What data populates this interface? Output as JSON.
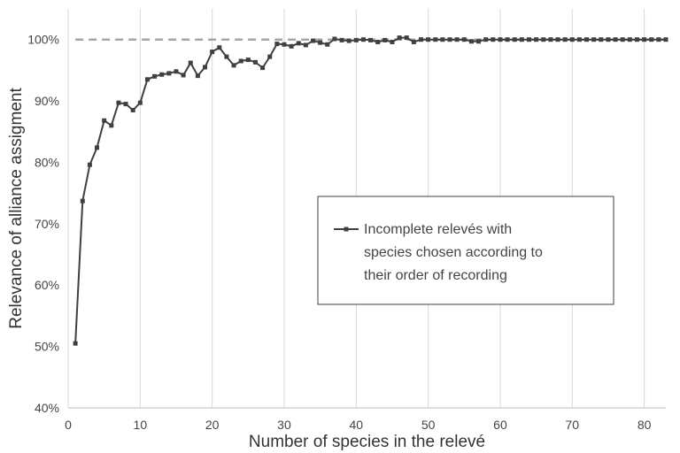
{
  "chart_data": {
    "type": "line",
    "title": "",
    "xlabel": "Number of species in the relevé",
    "ylabel": "Relevance of alliance assigment",
    "xlim": [
      0,
      83
    ],
    "ylim": [
      40,
      105
    ],
    "x_ticks": [
      0,
      10,
      20,
      30,
      40,
      50,
      60,
      70,
      80
    ],
    "y_ticks": [
      40,
      50,
      60,
      70,
      80,
      90,
      100
    ],
    "y_tick_labels": [
      "40%",
      "50%",
      "60%",
      "70%",
      "80%",
      "90%",
      "100%"
    ],
    "grid": "vertical",
    "legend_position": "center-right",
    "reference_line": {
      "y": 100,
      "style": "dashed",
      "color": "#a6a6a6"
    },
    "series": [
      {
        "name": "Incomplete relevés with species chosen according to their order of recording",
        "name_lines": [
          "Incomplete relevés with",
          "species chosen according to",
          "their order of recording"
        ],
        "color": "#404040",
        "marker": "square",
        "x": [
          1,
          2,
          3,
          4,
          5,
          6,
          7,
          8,
          9,
          10,
          11,
          12,
          13,
          14,
          15,
          16,
          17,
          18,
          19,
          20,
          21,
          22,
          23,
          24,
          25,
          26,
          27,
          28,
          29,
          30,
          31,
          32,
          33,
          34,
          35,
          36,
          37,
          38,
          39,
          40,
          41,
          42,
          43,
          44,
          45,
          46,
          47,
          48,
          49,
          50,
          51,
          52,
          53,
          54,
          55,
          56,
          57,
          58,
          59,
          60,
          61,
          62,
          63,
          64,
          65,
          66,
          67,
          68,
          69,
          70,
          71,
          72,
          73,
          74,
          75,
          76,
          77,
          78,
          79,
          80,
          81,
          82,
          83
        ],
        "y": [
          50.5,
          73.7,
          79.6,
          82.4,
          86.8,
          86.0,
          89.7,
          89.5,
          88.5,
          89.7,
          93.5,
          94.0,
          94.3,
          94.5,
          94.8,
          94.2,
          96.2,
          94.1,
          95.5,
          98.0,
          98.7,
          97.2,
          95.8,
          96.5,
          96.7,
          96.3,
          95.4,
          97.2,
          99.3,
          99.2,
          98.9,
          99.4,
          99.1,
          99.8,
          99.5,
          99.2,
          100.1,
          99.9,
          99.8,
          99.9,
          100.0,
          99.9,
          99.6,
          99.9,
          99.6,
          100.3,
          100.3,
          99.6,
          100.0,
          100.0,
          100.0,
          100.0,
          100.0,
          100.0,
          100.0,
          99.7,
          99.7,
          100.0,
          100.0,
          100.0,
          100.0,
          100.0,
          100.0,
          100.0,
          100.0,
          100.0,
          100.0,
          100.0,
          100.0,
          100.0,
          100.0,
          100.0,
          100.0,
          100.0,
          100.0,
          100.0,
          100.0,
          100.0,
          100.0,
          100.0,
          100.0,
          100.0,
          100.0
        ]
      }
    ]
  }
}
